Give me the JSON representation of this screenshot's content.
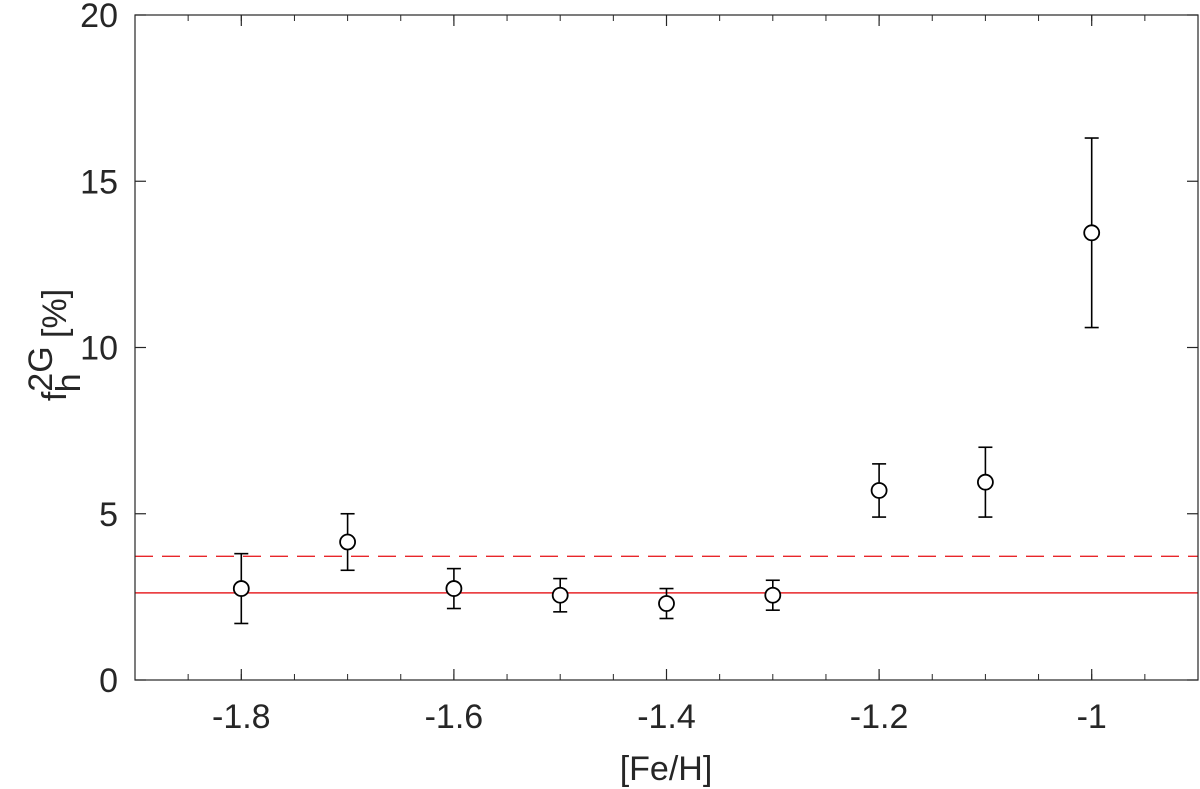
{
  "chart_data": {
    "type": "scatter",
    "title": "",
    "xlabel": "[Fe/H]",
    "ylabel": {
      "base": "f",
      "superscript": "2G",
      "subscript": "h",
      "unit": " [%]"
    },
    "xlim": [
      -1.9,
      -0.9
    ],
    "ylim": [
      0,
      20
    ],
    "x_ticks": [
      -1.8,
      -1.6,
      -1.4,
      -1.2,
      -1.0
    ],
    "x_tick_labels": [
      "-1.8",
      "-1.6",
      "-1.4",
      "-1.2",
      "-1"
    ],
    "x_minor_tick_step": 0.05,
    "y_ticks": [
      0,
      5,
      10,
      15,
      20
    ],
    "y_tick_labels": [
      "0",
      "5",
      "10",
      "15",
      "20"
    ],
    "grid": false,
    "box": true,
    "series": [
      {
        "marker": "circle-open",
        "color": "#000000",
        "points": [
          {
            "x": -1.8,
            "y": 2.75,
            "err_low": 1.05,
            "err_high": 1.05
          },
          {
            "x": -1.7,
            "y": 4.15,
            "err_low": 0.85,
            "err_high": 0.85
          },
          {
            "x": -1.6,
            "y": 2.75,
            "err_low": 0.6,
            "err_high": 0.6
          },
          {
            "x": -1.5,
            "y": 2.55,
            "err_low": 0.5,
            "err_high": 0.5
          },
          {
            "x": -1.4,
            "y": 2.3,
            "err_low": 0.45,
            "err_high": 0.45
          },
          {
            "x": -1.3,
            "y": 2.55,
            "err_low": 0.45,
            "err_high": 0.45
          },
          {
            "x": -1.2,
            "y": 5.7,
            "err_low": 0.8,
            "err_high": 0.8
          },
          {
            "x": -1.1,
            "y": 5.95,
            "err_low": 1.05,
            "err_high": 1.05
          },
          {
            "x": -1.0,
            "y": 13.45,
            "err_low": 2.85,
            "err_high": 2.85
          }
        ]
      }
    ],
    "reference_lines": [
      {
        "y": 2.62,
        "style": "solid",
        "color": "#e8262a"
      },
      {
        "y": 3.72,
        "style": "dashed",
        "color": "#e8262a"
      }
    ]
  }
}
